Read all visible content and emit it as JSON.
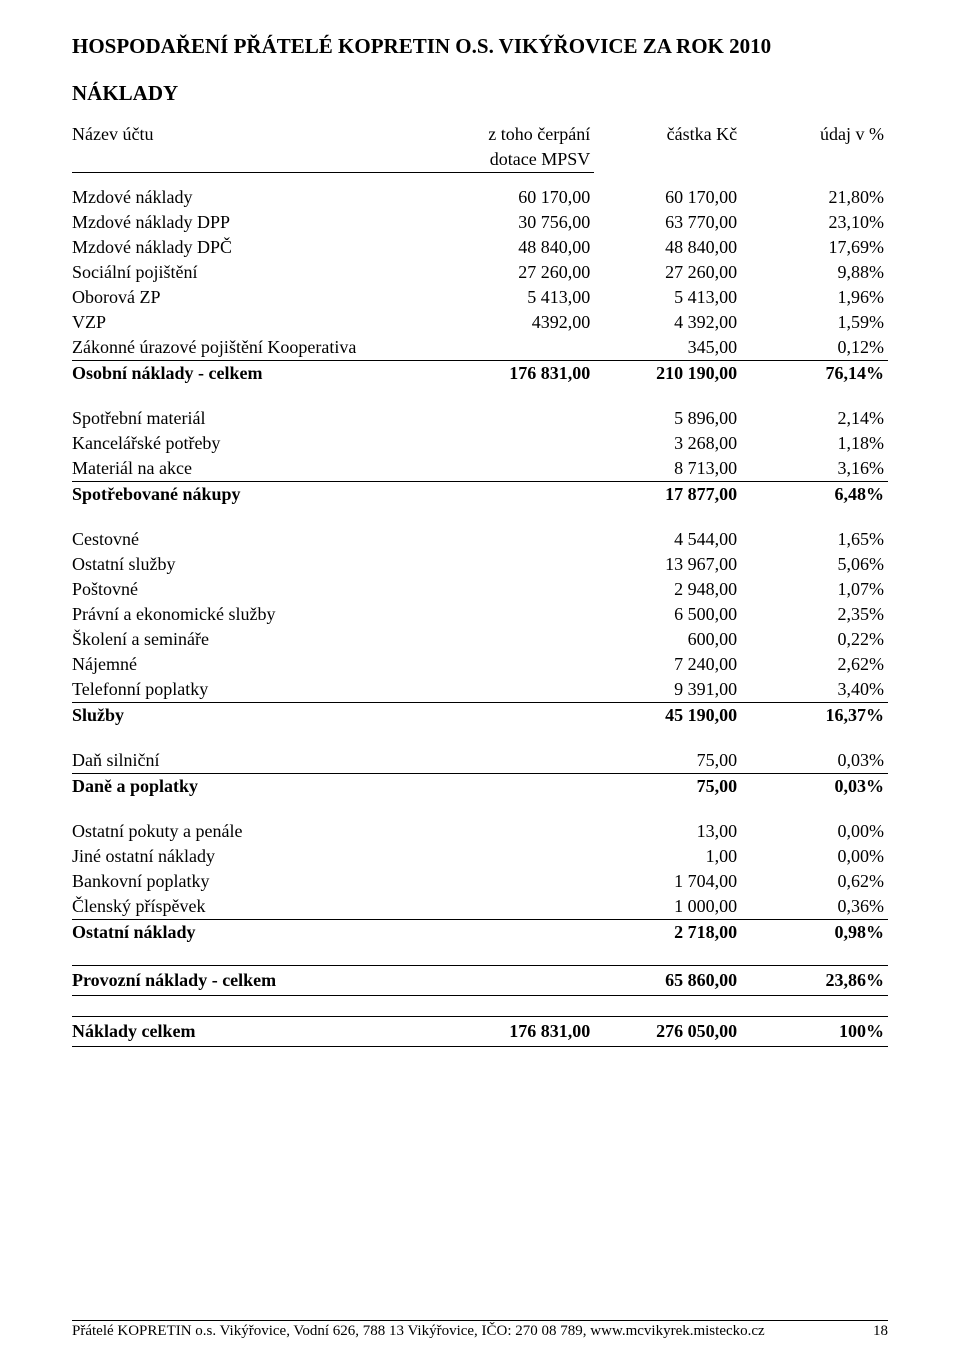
{
  "title": "HOSPODAŘENÍ PŘÁTELÉ KOPRETIN O.S. VIKÝŘOVICE ZA ROK 2010",
  "section": "NÁKLADY",
  "header": {
    "col1_line1": "Název účtu",
    "col2_line1": "z toho čerpání",
    "col2_line2": "dotace MPSV",
    "col3_line1": "částka Kč",
    "col4_line1": "údaj v %"
  },
  "groups": [
    {
      "rows": [
        {
          "label": "Mzdové náklady",
          "a": "60 170,00",
          "b": "60 170,00",
          "c": "21,80%",
          "uline": false
        },
        {
          "label": "Mzdové náklady DPP",
          "a": "30 756,00",
          "b": "63 770,00",
          "c": "23,10%",
          "uline": false
        },
        {
          "label": "Mzdové náklady DPČ",
          "a": "48 840,00",
          "b": "48 840,00",
          "c": "17,69%",
          "uline": false
        },
        {
          "label": "Sociální pojištění",
          "a": "27 260,00",
          "b": "27 260,00",
          "c": "9,88%",
          "uline": false
        },
        {
          "label": "Oborová ZP",
          "a": "5 413,00",
          "b": "5 413,00",
          "c": "1,96%",
          "uline": false
        },
        {
          "label": "VZP",
          "a": "4392,00",
          "b": "4 392,00",
          "c": "1,59%",
          "uline": false
        },
        {
          "label": "Zákonné úrazové pojištění Kooperativa",
          "a": "",
          "b": "345,00",
          "c": "0,12%",
          "uline": true
        }
      ],
      "total": {
        "label": "Osobní náklady - celkem",
        "a": "176 831,00",
        "b": "210 190,00",
        "c": "76,14%"
      }
    },
    {
      "rows": [
        {
          "label": "Spotřební materiál",
          "a": "",
          "b": "5 896,00",
          "c": "2,14%",
          "uline": false
        },
        {
          "label": "Kancelářské potřeby",
          "a": "",
          "b": "3 268,00",
          "c": "1,18%",
          "uline": false
        },
        {
          "label": "Materiál na akce",
          "a": "",
          "b": "8 713,00",
          "c": "3,16%",
          "uline": true
        }
      ],
      "total": {
        "label": "Spotřebované nákupy",
        "a": "",
        "b": "17 877,00",
        "c": "6,48%"
      }
    },
    {
      "rows": [
        {
          "label": "Cestovné",
          "a": "",
          "b": "4 544,00",
          "c": "1,65%",
          "uline": false
        },
        {
          "label": "Ostatní služby",
          "a": "",
          "b": "13 967,00",
          "c": "5,06%",
          "uline": false
        },
        {
          "label": "Poštovné",
          "a": "",
          "b": "2 948,00",
          "c": "1,07%",
          "uline": false
        },
        {
          "label": "Právní a ekonomické služby",
          "a": "",
          "b": "6 500,00",
          "c": "2,35%",
          "uline": false
        },
        {
          "label": "Školení a semináře",
          "a": "",
          "b": "600,00",
          "c": "0,22%",
          "uline": false
        },
        {
          "label": "Nájemné",
          "a": "",
          "b": "7 240,00",
          "c": "2,62%",
          "uline": false
        },
        {
          "label": "Telefonní poplatky",
          "a": "",
          "b": "9 391,00",
          "c": "3,40%",
          "uline": true
        }
      ],
      "total": {
        "label": "Služby",
        "a": "",
        "b": "45 190,00",
        "c": "16,37%"
      }
    },
    {
      "rows": [
        {
          "label": "Daň silniční",
          "a": "",
          "b": "75,00",
          "c": "0,03%",
          "uline": true
        }
      ],
      "total": {
        "label": "Daně a poplatky",
        "a": "",
        "b": "75,00",
        "c": "0,03%"
      }
    },
    {
      "rows": [
        {
          "label": "Ostatní pokuty a penále",
          "a": "",
          "b": "13,00",
          "c": "0,00%",
          "uline": false
        },
        {
          "label": "Jiné ostatní náklady",
          "a": "",
          "b": "1,00",
          "c": "0,00%",
          "uline": false
        },
        {
          "label": "Bankovní poplatky",
          "a": "",
          "b": "1 704,00",
          "c": "0,62%",
          "uline": false
        },
        {
          "label": "Členský příspěvek",
          "a": "",
          "b": "1 000,00",
          "c": "0,36%",
          "uline": true
        }
      ],
      "total": {
        "label": "Ostatní náklady",
        "a": "",
        "b": "2 718,00",
        "c": "0,98%"
      }
    }
  ],
  "subtotal": {
    "label": "Provozní náklady - celkem",
    "a": "",
    "b": "65 860,00",
    "c": "23,86%"
  },
  "grand": {
    "label": "Náklady celkem",
    "a": "176 831,00",
    "b": "276 050,00",
    "c": "100%"
  },
  "footer": {
    "text": "Přátelé KOPRETIN o.s. Vikýřovice, Vodní 626, 788 13 Vikýřovice, IČO: 270 08 789, www.mcvikyrek.mistecko.cz",
    "page": "18"
  }
}
